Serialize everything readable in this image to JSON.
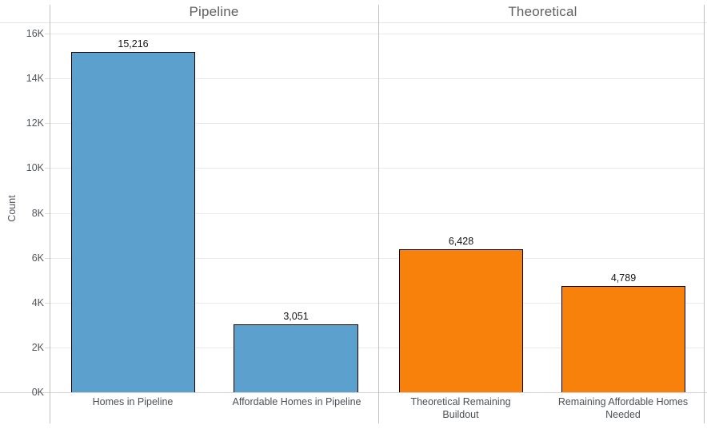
{
  "chart_data": {
    "type": "bar",
    "ylabel": "Count",
    "ylim": [
      0,
      16000
    ],
    "ytick_step": 2000,
    "ytick_labels": [
      "0K",
      "2K",
      "4K",
      "6K",
      "8K",
      "10K",
      "12K",
      "14K",
      "16K"
    ],
    "grid": true,
    "legend": "none",
    "panels": [
      {
        "title": "Pipeline",
        "color": "#5CA0CE",
        "bars": [
          {
            "category": "Homes in Pipeline",
            "value": 15216,
            "label": "15,216"
          },
          {
            "category": "Affordable Homes in Pipeline",
            "value": 3051,
            "label": "3,051"
          }
        ]
      },
      {
        "title": "Theoretical",
        "color": "#F8810B",
        "bars": [
          {
            "category": "Theoretical Remaining Buildout",
            "value": 6428,
            "label": "6,428"
          },
          {
            "category": "Remaining Affordable Homes Needed",
            "value": 4789,
            "label": "4,789"
          }
        ]
      }
    ]
  }
}
